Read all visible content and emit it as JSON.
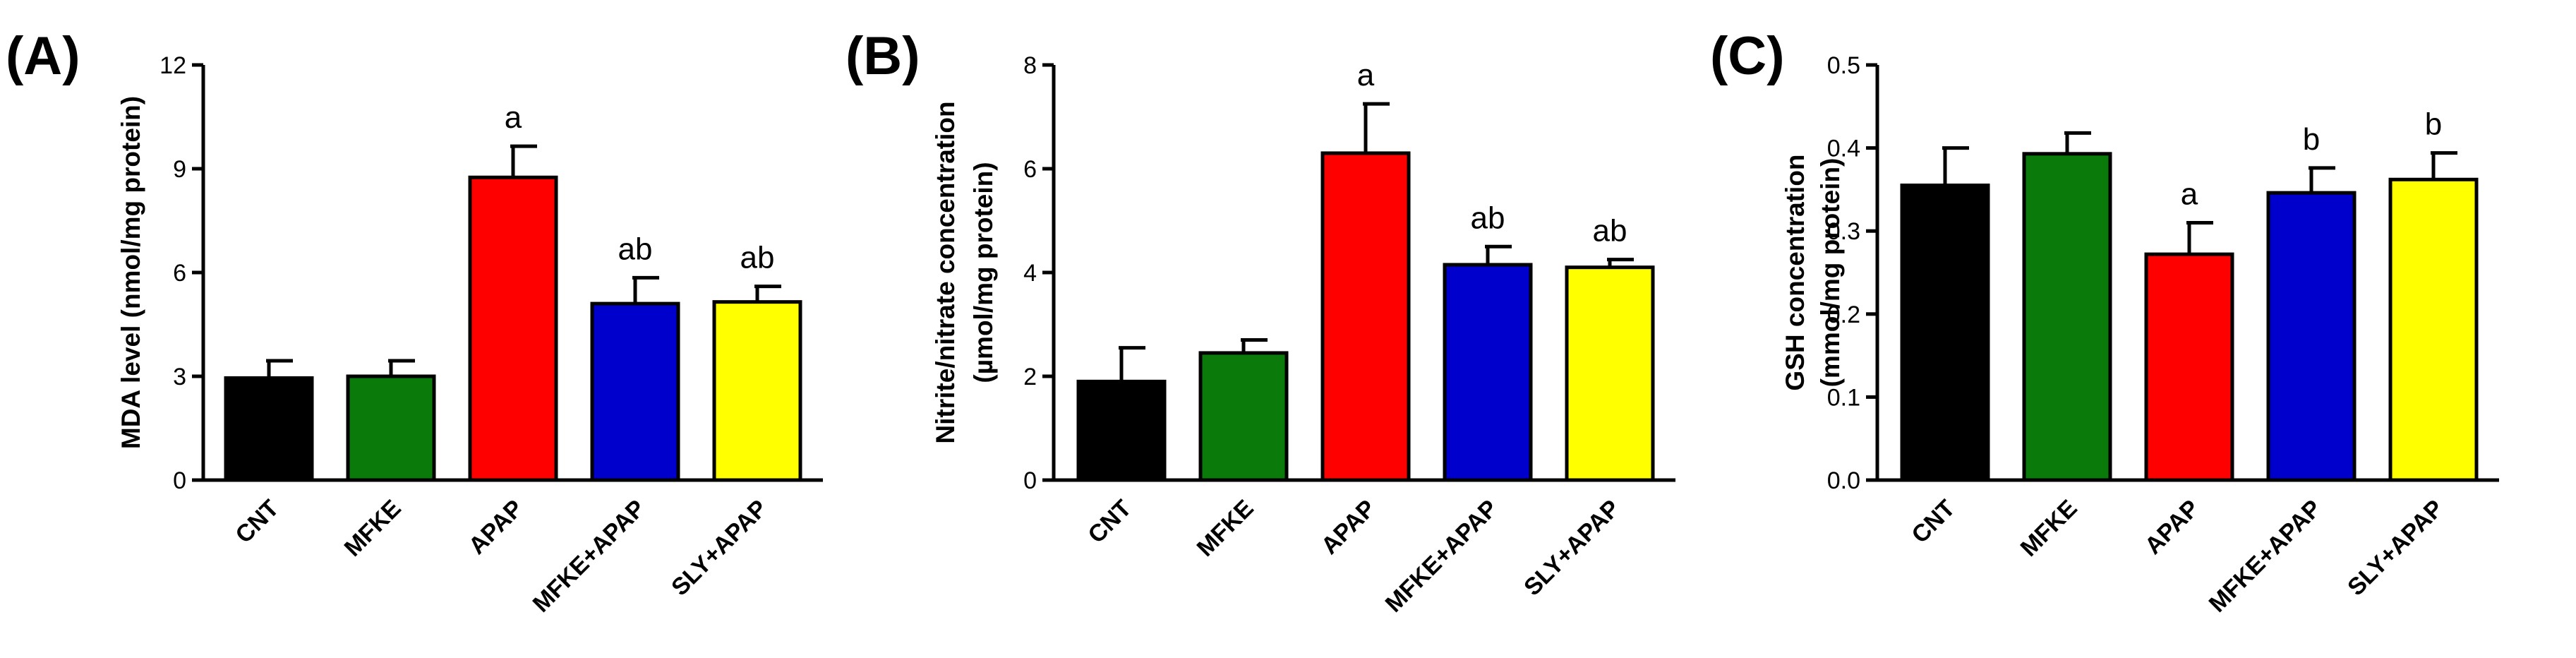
{
  "chart_data": [
    {
      "type": "bar",
      "panel": "(A)",
      "ylabel": "MDA level (nmol/mg protein)",
      "ylabel_lines": [
        "MDA level (nmol/mg protein)"
      ],
      "ylim": [
        0,
        12
      ],
      "yticks": [
        0,
        3,
        6,
        9,
        12
      ],
      "ytick_labels": [
        "0",
        "3",
        "6",
        "9",
        "12"
      ],
      "categories": [
        "CNT",
        "MFKE",
        "APAP",
        "MFKE+APAP",
        "SLY+APAP"
      ],
      "values": [
        2.95,
        3.0,
        8.75,
        5.1,
        5.15
      ],
      "errors": [
        0.5,
        0.45,
        0.9,
        0.75,
        0.45
      ],
      "annotations": [
        "",
        "",
        "a",
        "ab",
        "ab"
      ],
      "colors": [
        "#000000",
        "#0a7a0a",
        "#ff0000",
        "#0000cc",
        "#ffff00"
      ]
    },
    {
      "type": "bar",
      "panel": "(B)",
      "ylabel": "Nitrite/nitrate concentration (µmol/mg protein)",
      "ylabel_lines": [
        "Nitrite/nitrate concentration",
        "(µmol/mg protein)"
      ],
      "ylim": [
        0,
        8
      ],
      "yticks": [
        0,
        2,
        4,
        6,
        8
      ],
      "ytick_labels": [
        "0",
        "2",
        "4",
        "6",
        "8"
      ],
      "categories": [
        "CNT",
        "MFKE",
        "APAP",
        "MFKE+APAP",
        "SLY+APAP"
      ],
      "values": [
        1.9,
        2.45,
        6.3,
        4.15,
        4.1
      ],
      "errors": [
        0.65,
        0.25,
        0.95,
        0.35,
        0.15
      ],
      "annotations": [
        "",
        "",
        "a",
        "ab",
        "ab"
      ],
      "colors": [
        "#000000",
        "#0a7a0a",
        "#ff0000",
        "#0000cc",
        "#ffff00"
      ]
    },
    {
      "type": "bar",
      "panel": "(C)",
      "ylabel": "GSH concentration (mmol/mg protein)",
      "ylabel_lines": [
        "GSH concentration",
        "(mmol/mg protein)"
      ],
      "ylim": [
        0,
        0.5
      ],
      "yticks": [
        0,
        0.1,
        0.2,
        0.3,
        0.4,
        0.5
      ],
      "ytick_labels": [
        "0.0",
        "0.1",
        "0.2",
        "0.3",
        "0.4",
        "0.5"
      ],
      "categories": [
        "CNT",
        "MFKE",
        "APAP",
        "MFKE+APAP",
        "SLY+APAP"
      ],
      "values": [
        0.355,
        0.393,
        0.272,
        0.346,
        0.362
      ],
      "errors": [
        0.045,
        0.025,
        0.038,
        0.03,
        0.032
      ],
      "annotations": [
        "",
        "",
        "a",
        "b",
        "b"
      ],
      "colors": [
        "#000000",
        "#0a7a0a",
        "#ff0000",
        "#0000cc",
        "#ffff00"
      ]
    }
  ]
}
